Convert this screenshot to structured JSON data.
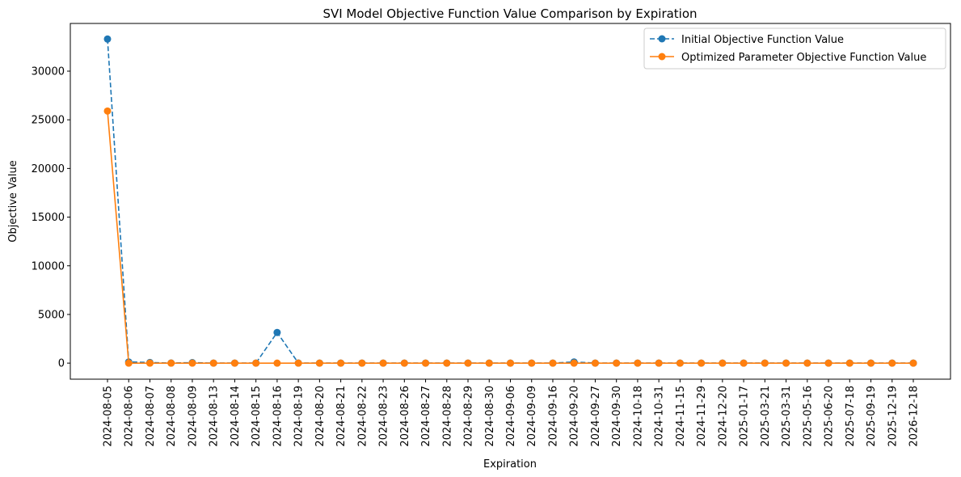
{
  "chart_data": {
    "type": "line",
    "title": "SVI Model Objective Function Value Comparison by Expiration",
    "xlabel": "Expiration",
    "ylabel": "Objective Value",
    "ylim": [
      -1650,
      34900
    ],
    "yticks": [
      0,
      5000,
      10000,
      15000,
      20000,
      25000,
      30000
    ],
    "ytick_labels": [
      "0",
      "5000",
      "10000",
      "15000",
      "20000",
      "25000",
      "30000"
    ],
    "grid": false,
    "legend_position": "top-right",
    "categories": [
      "2024-08-05",
      "2024-08-06",
      "2024-08-07",
      "2024-08-08",
      "2024-08-09",
      "2024-08-13",
      "2024-08-14",
      "2024-08-15",
      "2024-08-16",
      "2024-08-19",
      "2024-08-20",
      "2024-08-21",
      "2024-08-22",
      "2024-08-23",
      "2024-08-26",
      "2024-08-27",
      "2024-08-28",
      "2024-08-29",
      "2024-08-30",
      "2024-09-06",
      "2024-09-09",
      "2024-09-16",
      "2024-09-20",
      "2024-09-27",
      "2024-09-30",
      "2024-10-18",
      "2024-10-31",
      "2024-11-15",
      "2024-11-29",
      "2024-12-20",
      "2025-01-17",
      "2025-03-21",
      "2025-03-31",
      "2025-05-16",
      "2025-06-20",
      "2025-07-18",
      "2025-09-19",
      "2025-12-19",
      "2026-12-18"
    ],
    "series": [
      {
        "name": "Initial Objective Function Value",
        "color": "#1f77b4",
        "line_style": "dashed",
        "marker": "circle",
        "values": [
          33300,
          120,
          60,
          10,
          50,
          5,
          5,
          5,
          3150,
          10,
          5,
          5,
          5,
          5,
          5,
          5,
          5,
          5,
          5,
          5,
          5,
          5,
          120,
          5,
          5,
          5,
          5,
          5,
          5,
          5,
          5,
          5,
          5,
          5,
          5,
          5,
          5,
          5,
          5
        ]
      },
      {
        "name": "Optimized Parameter Objective Function Value",
        "color": "#ff7f0e",
        "line_style": "solid",
        "marker": "circle",
        "values": [
          25900,
          0,
          0,
          0,
          0,
          0,
          0,
          0,
          0,
          0,
          0,
          0,
          0,
          0,
          0,
          0,
          0,
          0,
          0,
          0,
          0,
          0,
          0,
          0,
          0,
          0,
          0,
          0,
          0,
          0,
          0,
          0,
          0,
          0,
          0,
          0,
          0,
          0,
          0
        ]
      }
    ]
  }
}
